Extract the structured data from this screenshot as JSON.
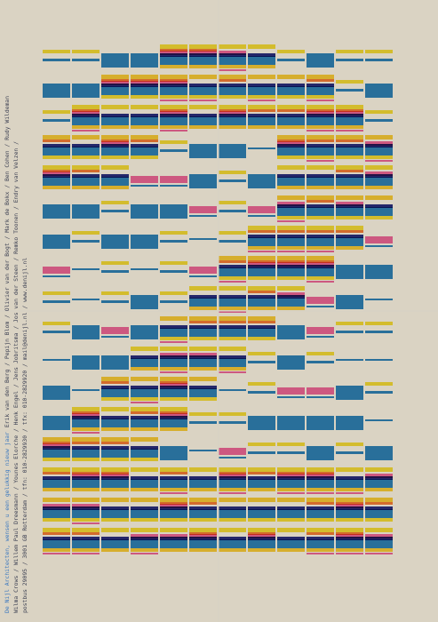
{
  "poster": {
    "greeting": "De Nijl Architecten, wensen u een gelukkig nieuw jaar",
    "names_line_1": "Erik van den Berg / Pepijn Blom / Olivier van der Bogt / Mark de Bokx / Ben Cohen / Rudy Wildeman",
    "names_line_2": "Wilma Crows / Willem Paul Dreesmann / Younes Elorche / Henk Engel / Jens Jobritsma / Jos van der Steen / Remko Toonen / Endry van Velzen /",
    "address_line": "postbus 29095 / 3001 GB Rotterdam / tfn: 010-2829930 / tfx: 010-2829920 / mail@denijl.nl / www.denijl.nl"
  }
}
